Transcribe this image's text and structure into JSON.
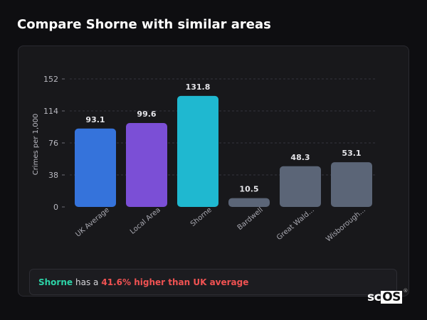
{
  "header": {
    "title": "Compare Shorne with similar areas"
  },
  "chart_data": {
    "type": "bar",
    "ylabel": "Crimes per 1,000",
    "ylim": [
      0,
      152
    ],
    "yticks": [
      0,
      38,
      76,
      114,
      152
    ],
    "categories": [
      "UK Average",
      "Local Area",
      "Shorne",
      "Bardwell",
      "Great Wald...",
      "Wisborough..."
    ],
    "values": [
      93.1,
      99.6,
      131.8,
      10.5,
      48.3,
      53.1
    ],
    "value_labels": [
      "93.1",
      "99.6",
      "131.8",
      "10.5",
      "48.3",
      "53.1"
    ],
    "colors": [
      "#3573db",
      "#7b4fd6",
      "#1fb8d0",
      "#5b6577",
      "#5b6577",
      "#5b6577"
    ],
    "grid": true,
    "legend": "none"
  },
  "summary": {
    "area_name": "Shorne",
    "connector": "has a",
    "stat_text": "41.6% higher than UK average"
  },
  "logo": {
    "text_a": "sc",
    "text_b": "OS",
    "mark": "®"
  },
  "colors": {
    "background": "#0e0e11",
    "card": "#18181b",
    "highlight_name": "#2dd4a8",
    "highlight_stat": "#f05252"
  }
}
